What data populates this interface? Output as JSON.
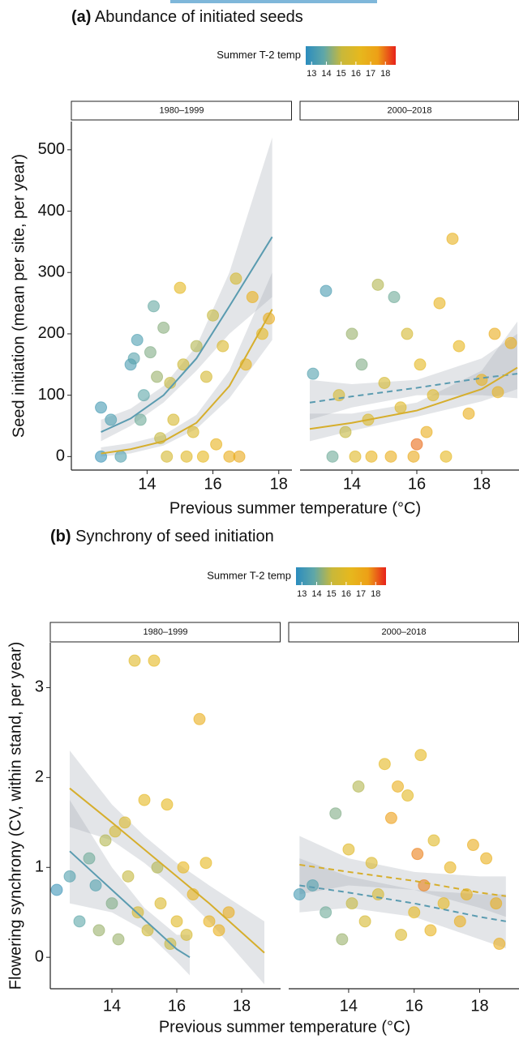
{
  "chart_data": [
    {
      "type": "scatter",
      "label": "(a)",
      "title": "Abundance of initiated seeds",
      "legend_title": "Summer T-2 temp",
      "legend_ticks": [
        13,
        14,
        15,
        16,
        17,
        18
      ],
      "legend_lim": [
        12.6,
        18.7
      ],
      "colormap": [
        "#2b8cbe",
        "#5fa7a8",
        "#c8b83a",
        "#e6b81e",
        "#eda016",
        "#e7211a"
      ],
      "y_label": "Seed initiation (mean per site, per year)",
      "x_label": "Previous summer temperature (°C)",
      "ylim": [
        -22,
        546
      ],
      "yticks": [
        0,
        100,
        200,
        300,
        400,
        500
      ],
      "facets": [
        {
          "name": "1980–1999",
          "xlim": [
            11.7,
            18.4
          ],
          "xticks": [
            14,
            16,
            18
          ],
          "x": [
            12.6,
            12.6,
            12.9,
            13.2,
            13.5,
            13.6,
            13.7,
            13.8,
            13.9,
            14.1,
            14.2,
            14.3,
            14.4,
            14.5,
            14.6,
            14.7,
            14.8,
            15,
            15.1,
            15.2,
            15.4,
            15.5,
            15.7,
            15.8,
            16,
            16.1,
            16.3,
            16.5,
            16.7,
            16.8,
            17,
            17.2,
            17.5,
            17.7
          ],
          "y": [
            0,
            80,
            60,
            0,
            150,
            160,
            190,
            60,
            100,
            170,
            245,
            130,
            30,
            210,
            0,
            120,
            60,
            275,
            150,
            0,
            40,
            180,
            0,
            130,
            230,
            20,
            180,
            0,
            290,
            0,
            150,
            260,
            200,
            225
          ],
          "temp": [
            13,
            13.2,
            13.4,
            13.5,
            13.3,
            13.6,
            13.4,
            14,
            13.8,
            14.2,
            13.9,
            14.5,
            15,
            14.3,
            15.5,
            15,
            15.6,
            16.2,
            15.2,
            16,
            15.8,
            14.8,
            16.3,
            15.5,
            15,
            16.5,
            15.8,
            16.8,
            15.5,
            17,
            16.5,
            16.7,
            16.3,
            16.9
          ],
          "fits": [
            {
              "color": "#5a9bb0",
              "dashed": false,
              "x": [
                12.6,
                13.5,
                14.5,
                15.5,
                16.5,
                17.8
              ],
              "y": [
                40,
                62,
                100,
                160,
                245,
                358
              ],
              "lower": [
                25,
                50,
                88,
                140,
                200,
                260
              ],
              "upper": [
                60,
                78,
                115,
                180,
                300,
                520
              ]
            },
            {
              "color": "#d6ae2c",
              "dashed": false,
              "x": [
                12.6,
                13.5,
                14.5,
                15.5,
                16.5,
                17.8
              ],
              "y": [
                5,
                12,
                25,
                55,
                115,
                240
              ],
              "lower": [
                0,
                5,
                18,
                45,
                95,
                190
              ],
              "upper": [
                15,
                22,
                35,
                68,
                140,
                300
              ]
            }
          ]
        },
        {
          "name": "2000–2018",
          "xlim": [
            12.4,
            19.15
          ],
          "xticks": [
            14,
            16,
            18
          ],
          "x": [
            12.8,
            13.2,
            13.4,
            13.6,
            13.8,
            14,
            14.1,
            14.3,
            14.5,
            14.6,
            14.8,
            15,
            15.2,
            15.3,
            15.5,
            15.7,
            15.9,
            16,
            16.1,
            16.3,
            16.5,
            16.7,
            16.9,
            17.1,
            17.3,
            17.6,
            18,
            18.4,
            18.5,
            18.9
          ],
          "y": [
            135,
            270,
            0,
            100,
            40,
            200,
            0,
            150,
            60,
            0,
            280,
            120,
            0,
            260,
            80,
            200,
            0,
            20,
            150,
            40,
            100,
            250,
            0,
            355,
            180,
            70,
            125,
            200,
            105,
            185
          ],
          "temp": [
            13.5,
            13.3,
            14,
            15.5,
            15,
            14.5,
            16,
            14.2,
            15.8,
            16.5,
            14.8,
            15.5,
            16.8,
            14,
            16,
            15.5,
            17,
            18,
            16.2,
            16.8,
            16,
            16.5,
            16.3,
            16.6,
            16.4,
            16.8,
            16.6,
            16.9,
            16.5,
            16.8
          ],
          "fits": [
            {
              "color": "#5a9bb0",
              "dashed": true,
              "x": [
                12.7,
                14,
                16,
                18,
                19.1
              ],
              "y": [
                88,
                98,
                112,
                128,
                135
              ],
              "lower": [
                60,
                80,
                100,
                100,
                95
              ],
              "upper": [
                125,
                118,
                125,
                160,
                200
              ]
            },
            {
              "color": "#d6ae2c",
              "dashed": false,
              "x": [
                12.7,
                14,
                16,
                18,
                19.1
              ],
              "y": [
                45,
                55,
                75,
                110,
                145
              ],
              "lower": [
                25,
                42,
                65,
                90,
                110
              ],
              "upper": [
                70,
                70,
                88,
                140,
                220
              ]
            }
          ]
        }
      ]
    },
    {
      "type": "scatter",
      "label": "(b)",
      "title": "Synchrony of seed initiation",
      "legend_title": "Summer T-2 temp",
      "legend_ticks": [
        13,
        14,
        15,
        16,
        17,
        18
      ],
      "legend_lim": [
        12.6,
        18.7
      ],
      "colormap": [
        "#2b8cbe",
        "#5fa7a8",
        "#c8b83a",
        "#e6b81e",
        "#eda016",
        "#e7211a"
      ],
      "y_label": "Flowering synchrony (CV, within stand, per year)",
      "x_label": "Previous summer temperature (°C)",
      "ylim": [
        -0.35,
        3.5
      ],
      "yticks": [
        0,
        1,
        2,
        3
      ],
      "facets": [
        {
          "name": "1980–1999",
          "xlim": [
            12.1,
            19.2
          ],
          "xticks": [
            14,
            16,
            18
          ],
          "x": [
            12.3,
            12.7,
            13,
            13.3,
            13.5,
            13.6,
            13.8,
            14,
            14.1,
            14.2,
            14.4,
            14.5,
            14.7,
            14.8,
            15,
            15.1,
            15.3,
            15.4,
            15.5,
            15.7,
            15.8,
            16,
            16.2,
            16.3,
            16.5,
            16.7,
            16.9,
            17,
            17.3,
            17.6
          ],
          "y": [
            0.75,
            0.9,
            0.4,
            1.1,
            0.8,
            0.3,
            1.3,
            0.6,
            1.4,
            0.2,
            1.5,
            0.9,
            3.3,
            0.5,
            1.75,
            0.3,
            3.3,
            1,
            0.6,
            1.7,
            0.15,
            0.4,
            1,
            0.25,
            0.7,
            2.65,
            1.05,
            0.4,
            0.3,
            0.5
          ],
          "temp": [
            13,
            13.5,
            13.8,
            14,
            13.5,
            14.5,
            14.8,
            14.2,
            15.5,
            14.5,
            15.8,
            15,
            16,
            15.5,
            16.2,
            15.3,
            16.2,
            14.8,
            15.8,
            16.3,
            15,
            16,
            16.4,
            15.5,
            16.5,
            16.8,
            16.3,
            16.6,
            16.7,
            16.9
          ],
          "fits": [
            {
              "color": "#5a9bb0",
              "dashed": false,
              "x": [
                12.7,
                14,
                15,
                16,
                16.4
              ],
              "y": [
                1.18,
                0.75,
                0.42,
                0.09,
                0
              ],
              "lower": [
                0.6,
                0.5,
                0.3,
                -0.05,
                -0.2
              ],
              "upper": [
                1.75,
                1,
                0.55,
                0.25,
                0.25
              ]
            },
            {
              "color": "#d6ae2c",
              "dashed": false,
              "x": [
                12.7,
                14,
                15,
                16,
                17,
                18.7
              ],
              "y": [
                1.88,
                1.5,
                1.2,
                0.9,
                0.6,
                0.05
              ],
              "lower": [
                1.45,
                1.3,
                1.05,
                0.75,
                0.4,
                -0.3
              ],
              "upper": [
                2.3,
                1.7,
                1.35,
                1.05,
                0.8,
                0.4
              ]
            }
          ]
        },
        {
          "name": "2000–2018",
          "xlim": [
            12.17,
            19.2
          ],
          "xticks": [
            14,
            16,
            18
          ],
          "x": [
            12.5,
            12.9,
            13.3,
            13.6,
            13.8,
            14,
            14.1,
            14.3,
            14.5,
            14.7,
            14.9,
            15.1,
            15.3,
            15.5,
            15.6,
            15.8,
            16,
            16.1,
            16.2,
            16.3,
            16.5,
            16.6,
            16.9,
            17.1,
            17.4,
            17.6,
            17.8,
            18.2,
            18.5,
            18.6
          ],
          "y": [
            0.7,
            0.8,
            0.5,
            1.6,
            0.2,
            1.2,
            0.6,
            1.9,
            0.4,
            1.05,
            0.7,
            2.15,
            1.55,
            1.9,
            0.25,
            1.8,
            0.5,
            1.15,
            2.25,
            0.8,
            0.3,
            1.3,
            0.6,
            1,
            0.4,
            0.7,
            1.25,
            1.1,
            0.6,
            0.15
          ],
          "temp": [
            13.2,
            13.5,
            14,
            14.2,
            14.5,
            16,
            15,
            14.8,
            15.6,
            15.8,
            15.5,
            16.2,
            17.5,
            16.8,
            15.8,
            16.1,
            16.3,
            17.8,
            16.3,
            17.8,
            16.5,
            16,
            16.3,
            16.5,
            16.8,
            16.6,
            16.9,
            16.7,
            16.8,
            16.9
          ],
          "fits": [
            {
              "color": "#5a9bb0",
              "dashed": true,
              "x": [
                12.5,
                14,
                16,
                18,
                18.8
              ],
              "y": [
                0.8,
                0.72,
                0.6,
                0.45,
                0.4
              ],
              "lower": [
                0.5,
                0.55,
                0.45,
                0.2,
                0.1
              ],
              "upper": [
                1.1,
                0.9,
                0.75,
                0.7,
                0.7
              ]
            },
            {
              "color": "#d6ae2c",
              "dashed": true,
              "x": [
                12.5,
                14,
                16,
                18,
                18.8
              ],
              "y": [
                1.03,
                0.95,
                0.85,
                0.72,
                0.68
              ],
              "lower": [
                0.7,
                0.8,
                0.75,
                0.55,
                0.45
              ],
              "upper": [
                1.35,
                1.1,
                0.95,
                0.9,
                0.9
              ]
            }
          ]
        }
      ]
    }
  ]
}
